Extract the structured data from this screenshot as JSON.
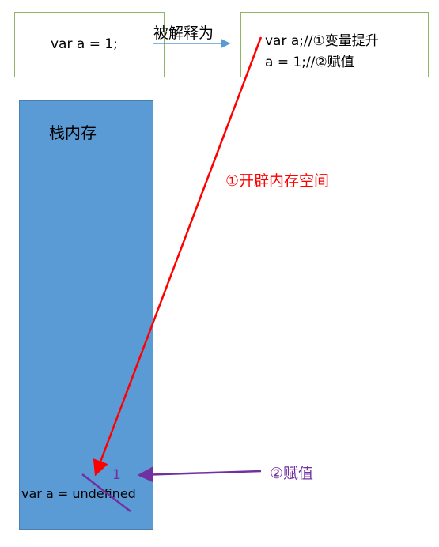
{
  "source_code": "var a = 1;",
  "arrow_label": "被解释为",
  "hoisted": {
    "line1": "var a;//①变量提升",
    "line2": "a = 1;//②赋值"
  },
  "stack": {
    "title": "栈内存",
    "var_text": "var a = undefined",
    "new_value": "1"
  },
  "annotations": {
    "allocate": "①开辟内存空间",
    "assign": "②赋值"
  },
  "colors": {
    "box_border": "#8fb46a",
    "stack_fill": "#5b9bd5",
    "allocate_arrow": "#ff0000",
    "assign_arrow": "#7030a0",
    "interpret_arrow": "#5b9bd5"
  }
}
